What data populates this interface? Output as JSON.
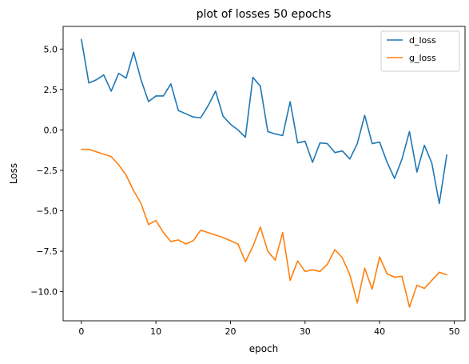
{
  "chart_data": {
    "type": "line",
    "title": "plot of losses 50 epochs",
    "xlabel": "epoch",
    "ylabel": "Loss",
    "xlim": [
      -2.45,
      51.45
    ],
    "ylim": [
      -11.8,
      6.4
    ],
    "x_ticks": [
      0,
      10,
      20,
      30,
      40,
      50
    ],
    "x_tick_labels": [
      "0",
      "10",
      "20",
      "30",
      "40",
      "50"
    ],
    "y_ticks": [
      5.0,
      2.5,
      0.0,
      -2.5,
      -5.0,
      -7.5,
      -10.0
    ],
    "y_tick_labels": [
      "5.0",
      "2.5",
      "0.0",
      "−2.5",
      "−5.0",
      "−7.5",
      "−10.0"
    ],
    "grid": false,
    "legend_position": "top-right",
    "x": [
      0,
      1,
      2,
      3,
      4,
      5,
      6,
      7,
      8,
      9,
      10,
      11,
      12,
      13,
      14,
      15,
      16,
      17,
      18,
      19,
      20,
      21,
      22,
      23,
      24,
      25,
      26,
      27,
      28,
      29,
      30,
      31,
      32,
      33,
      34,
      35,
      36,
      37,
      38,
      39,
      40,
      41,
      42,
      43,
      44,
      45,
      46,
      47,
      48,
      49
    ],
    "series": [
      {
        "name": "d_loss",
        "color": "#1f77b4",
        "values": [
          5.6,
          2.9,
          3.1,
          3.4,
          2.4,
          3.5,
          3.2,
          4.8,
          3.1,
          1.75,
          2.1,
          2.1,
          2.85,
          1.2,
          1.0,
          0.8,
          0.75,
          1.5,
          2.4,
          0.85,
          0.35,
          0.0,
          -0.45,
          3.25,
          2.7,
          -0.1,
          -0.25,
          -0.35,
          1.75,
          -0.8,
          -0.7,
          -2.0,
          -0.8,
          -0.85,
          -1.4,
          -1.3,
          -1.8,
          -0.85,
          0.9,
          -0.85,
          -0.75,
          -2.0,
          -3.0,
          -1.8,
          -0.1,
          -2.6,
          -0.95,
          -2.05,
          -4.55,
          -1.55
        ]
      },
      {
        "name": "g_loss",
        "color": "#ff7f0e",
        "values": [
          -1.2,
          -1.2,
          -1.35,
          -1.5,
          -1.65,
          -2.15,
          -2.8,
          -3.75,
          -4.55,
          -5.85,
          -5.6,
          -6.35,
          -6.9,
          -6.8,
          -7.05,
          -6.85,
          -6.2,
          -6.35,
          -6.5,
          -6.65,
          -6.85,
          -7.05,
          -8.15,
          -7.2,
          -6.0,
          -7.5,
          -8.05,
          -6.35,
          -9.3,
          -8.1,
          -8.75,
          -8.65,
          -8.75,
          -8.3,
          -7.4,
          -7.9,
          -8.95,
          -10.7,
          -8.55,
          -9.85,
          -7.85,
          -8.9,
          -9.1,
          -9.05,
          -10.95,
          -9.6,
          -9.8,
          -9.3,
          -8.8,
          -8.95
        ]
      }
    ]
  }
}
